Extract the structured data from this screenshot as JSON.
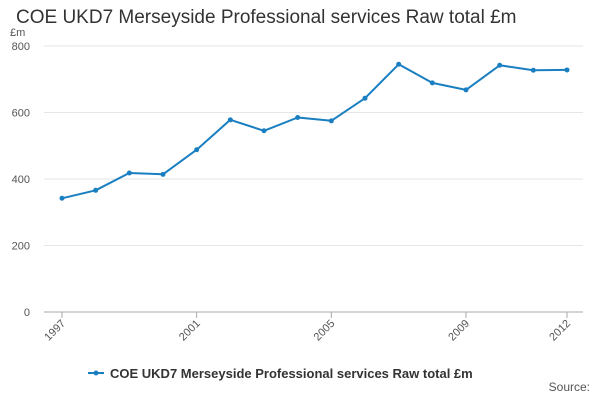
{
  "header": {
    "title": "COE UKD7 Merseyside Professional services Raw total £m"
  },
  "footer": {
    "source_label": "Source:"
  },
  "chart_data": {
    "type": "line",
    "title": "COE UKD7 Merseyside Professional services Raw total £m",
    "ylabel": "£m",
    "xlabel": "",
    "ylim": [
      0,
      800
    ],
    "yticks": [
      0,
      200,
      400,
      600,
      800
    ],
    "xticks": [
      1997,
      2001,
      2005,
      2009,
      2012
    ],
    "grid": "horizontal",
    "legend_position": "bottom",
    "color": "#1a7fc1",
    "series": [
      {
        "name": "COE UKD7 Merseyside Professional services Raw total £m",
        "x": [
          1997,
          1998,
          1999,
          2000,
          2001,
          2002,
          2003,
          2004,
          2005,
          2006,
          2007,
          2008,
          2009,
          2010,
          2011,
          2012
        ],
        "values": [
          342,
          366,
          418,
          414,
          488,
          578,
          545,
          585,
          575,
          643,
          745,
          689,
          668,
          742,
          727,
          728
        ]
      }
    ]
  }
}
